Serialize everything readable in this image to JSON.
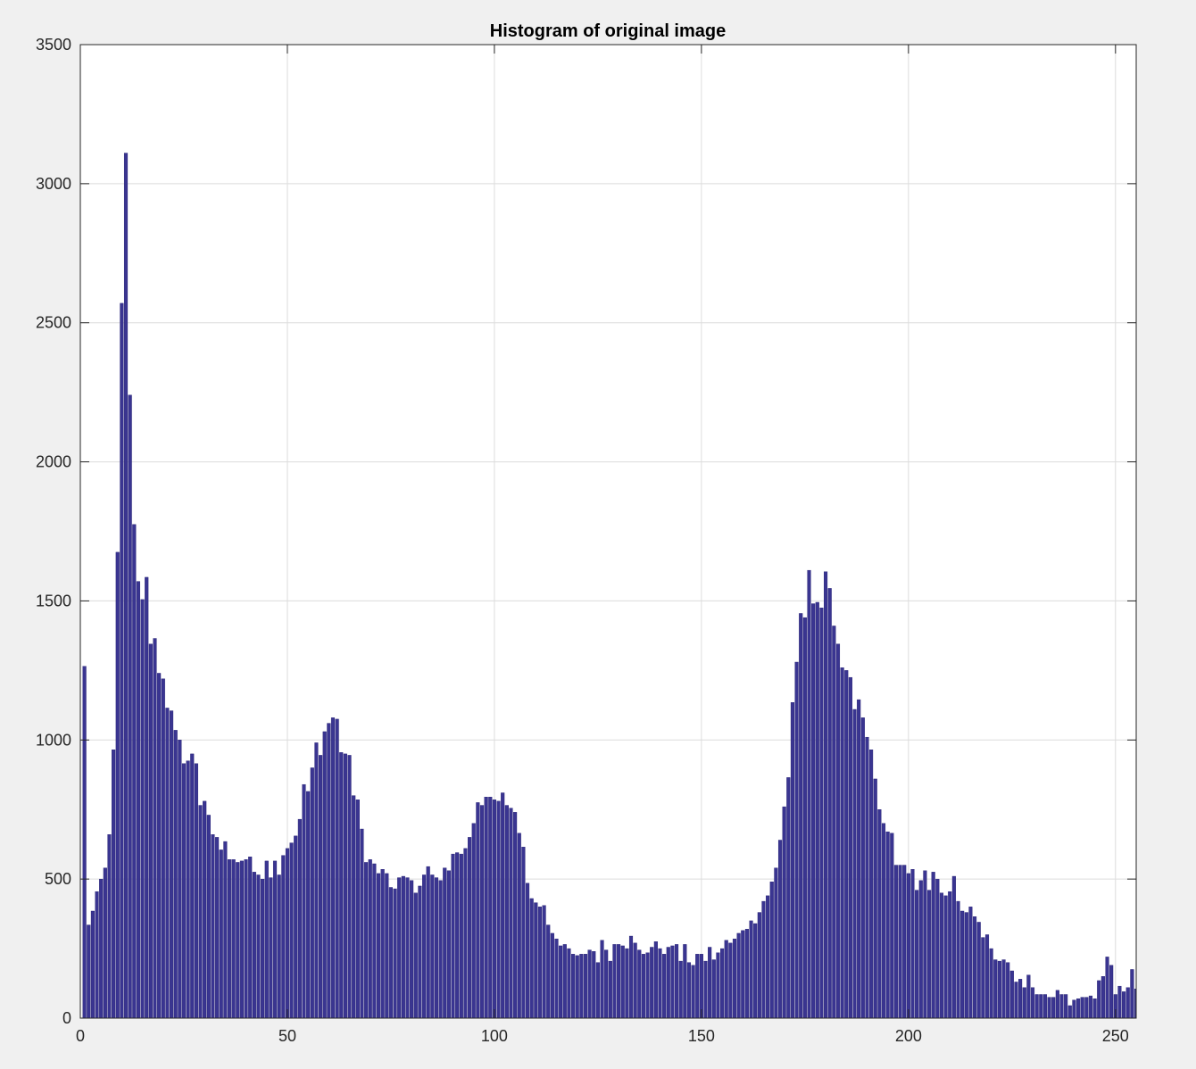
{
  "chart_data": {
    "type": "bar",
    "title": "Histogram of original image",
    "xlabel": "",
    "ylabel": "",
    "xlim": [
      0,
      255
    ],
    "ylim": [
      0,
      3500
    ],
    "grid": true,
    "bar_color": "#3a3591",
    "x_ticks": [
      0,
      50,
      100,
      150,
      200,
      250
    ],
    "y_ticks": [
      0,
      500,
      1000,
      1500,
      2000,
      2500,
      3000,
      3500
    ],
    "x_start": 1,
    "values": [
      1265,
      335,
      385,
      455,
      500,
      540,
      660,
      965,
      1675,
      2570,
      3110,
      2240,
      1775,
      1570,
      1505,
      1585,
      1345,
      1365,
      1240,
      1220,
      1115,
      1105,
      1035,
      1000,
      915,
      925,
      950,
      915,
      765,
      780,
      730,
      660,
      650,
      605,
      635,
      570,
      570,
      560,
      565,
      570,
      580,
      525,
      515,
      500,
      565,
      505,
      565,
      515,
      585,
      610,
      630,
      655,
      715,
      840,
      815,
      900,
      990,
      945,
      1030,
      1060,
      1080,
      1075,
      955,
      950,
      945,
      800,
      785,
      680,
      560,
      570,
      555,
      520,
      535,
      520,
      470,
      465,
      505,
      510,
      505,
      495,
      450,
      475,
      515,
      545,
      515,
      505,
      495,
      540,
      530,
      590,
      595,
      590,
      610,
      650,
      700,
      775,
      765,
      795,
      795,
      785,
      780,
      810,
      765,
      755,
      740,
      665,
      615,
      485,
      430,
      415,
      400,
      405,
      335,
      305,
      285,
      260,
      265,
      250,
      230,
      225,
      230,
      230,
      245,
      240,
      200,
      280,
      245,
      205,
      265,
      265,
      260,
      250,
      295,
      270,
      245,
      230,
      235,
      255,
      275,
      250,
      230,
      255,
      260,
      265,
      205,
      265,
      200,
      190,
      230,
      230,
      205,
      255,
      210,
      235,
      250,
      280,
      270,
      285,
      305,
      315,
      320,
      350,
      340,
      380,
      420,
      440,
      490,
      540,
      640,
      760,
      865,
      1135,
      1280,
      1455,
      1440,
      1610,
      1490,
      1495,
      1475,
      1605,
      1545,
      1410,
      1345,
      1260,
      1250,
      1225,
      1110,
      1145,
      1080,
      1010,
      965,
      860,
      750,
      700,
      670,
      665,
      550,
      550,
      550,
      520,
      535,
      460,
      495,
      530,
      460,
      525,
      500,
      450,
      440,
      455,
      510,
      420,
      385,
      380,
      400,
      365,
      345,
      290,
      300,
      250,
      210,
      205,
      210,
      200,
      170,
      130,
      140,
      110,
      155,
      110,
      85,
      85,
      85,
      75,
      75,
      100,
      85,
      85,
      45,
      65,
      70,
      75,
      75,
      80,
      70,
      135,
      150,
      220,
      190,
      85,
      115,
      95,
      110,
      175,
      105
    ]
  }
}
